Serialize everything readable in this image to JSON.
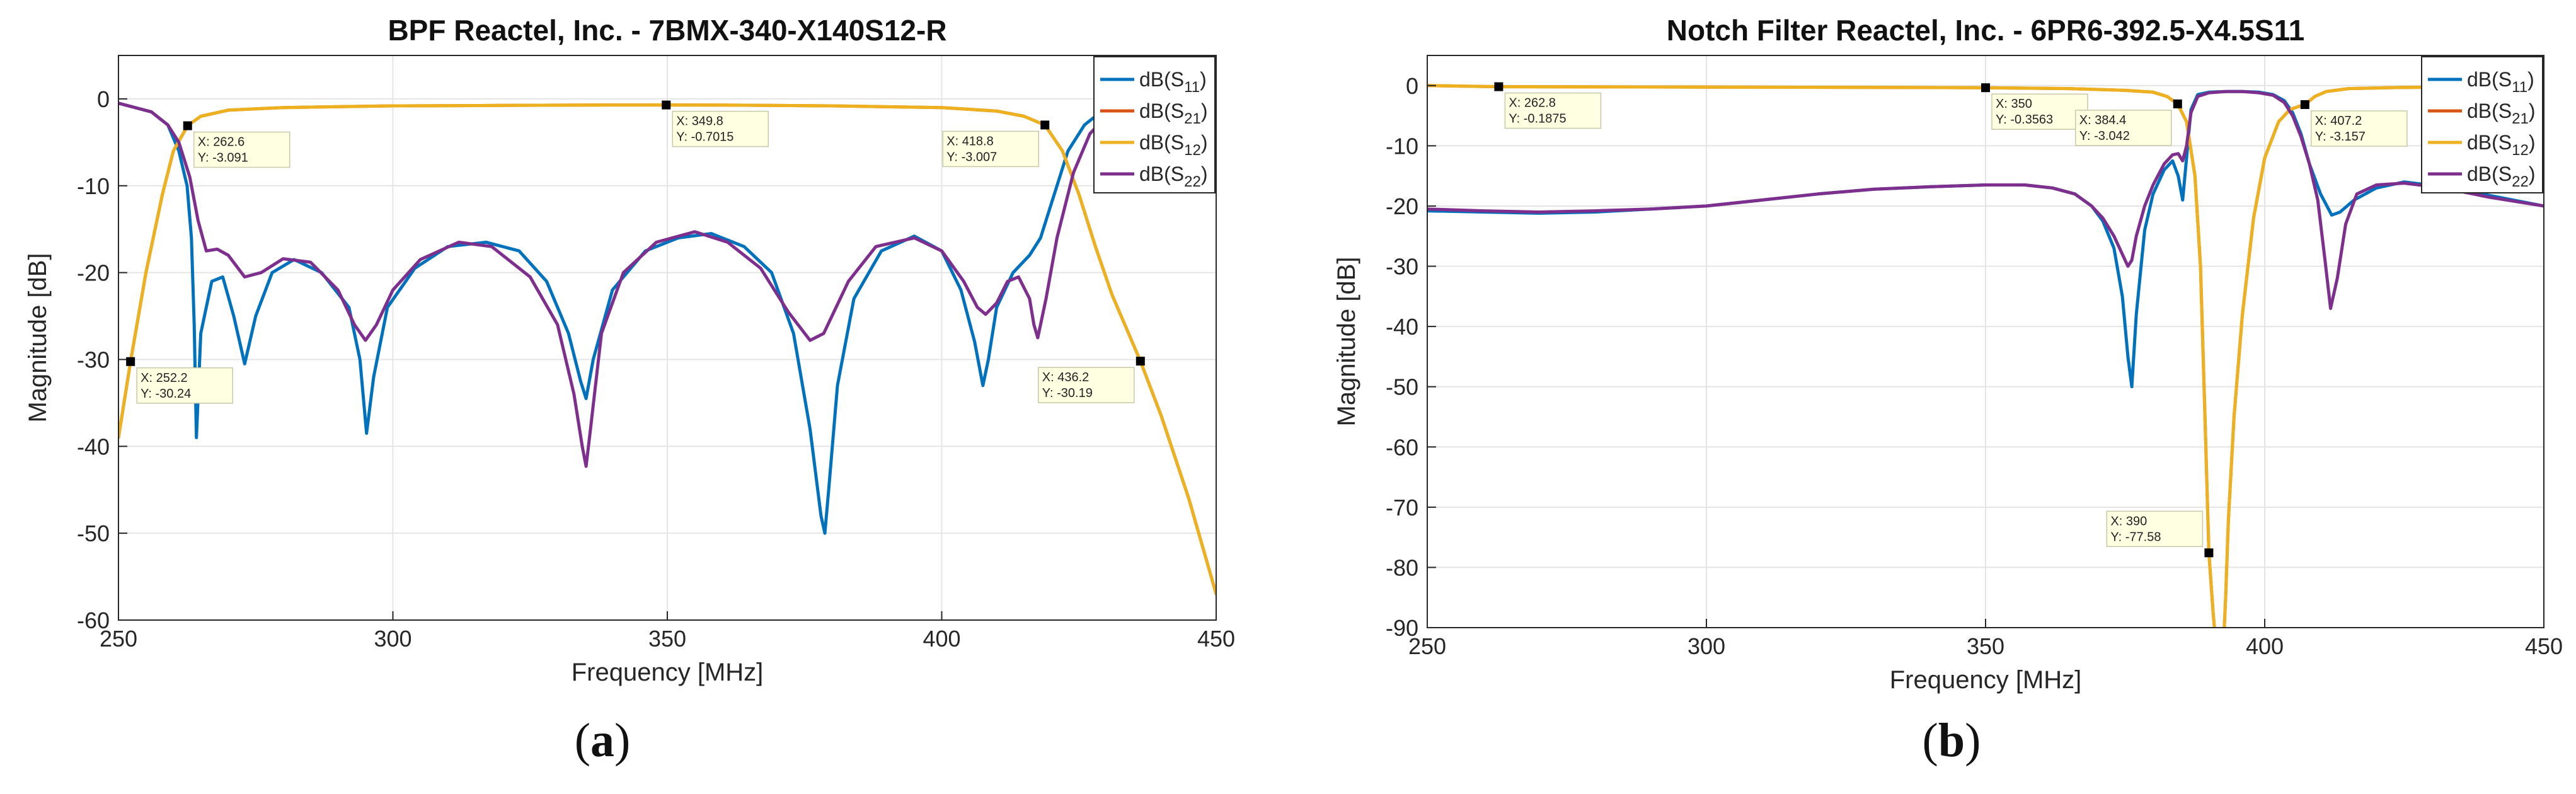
{
  "panels": [
    {
      "label_prefix": "(",
      "label_letter": "a",
      "label_suffix": ")",
      "chart_data": {
        "type": "line",
        "title": "BPF Reactel, Inc. - 7BMX-340-X140S12-R",
        "xlabel": "Frequency [MHz]",
        "ylabel": "Magnitude [dB]",
        "xlim": [
          250,
          450
        ],
        "ylim": [
          -60,
          5
        ],
        "xticks": [
          250,
          300,
          350,
          400,
          450
        ],
        "yticks": [
          0,
          -10,
          -20,
          -30,
          -40,
          -50,
          -60
        ],
        "grid": true,
        "legend": "top-right",
        "series": [
          {
            "name": "dB(S11)",
            "name_base": "dB(S",
            "name_sub": "11",
            "name_end": ")",
            "color": "#0072BD",
            "x": [
              250,
              256,
              259,
              261,
              262.5,
              263.3,
              263.8,
              264.2,
              265,
              267,
              269,
              271,
              273,
              275,
              278,
              282,
              287,
              292,
              294,
              295.2,
              296.5,
              299,
              304,
              310,
              317,
              323,
              328,
              332,
              334.2,
              335.2,
              336.5,
              340,
              346,
              352,
              358,
              364,
              369,
              373,
              376,
              378,
              378.7,
              379.4,
              381,
              384,
              389,
              395,
              400,
              403.5,
              406,
              407.5,
              408.5,
              410,
              413,
              416,
              418,
              420,
              423,
              426,
              429,
              432,
              436,
              440,
              445,
              450
            ],
            "y": [
              -0.5,
              -1.5,
              -3,
              -6,
              -10,
              -16,
              -26,
              -39,
              -27,
              -21,
              -20.5,
              -25,
              -30.5,
              -25,
              -20,
              -18.5,
              -20,
              -24,
              -30,
              -38.5,
              -32,
              -24,
              -19.5,
              -17,
              -16.5,
              -17.5,
              -21,
              -27,
              -32.5,
              -34.5,
              -30,
              -22,
              -17.5,
              -16,
              -15.5,
              -17,
              -20,
              -27,
              -38,
              -48,
              -50,
              -45,
              -33,
              -23,
              -17.5,
              -15.8,
              -17.5,
              -22,
              -28,
              -33,
              -30,
              -24,
              -20,
              -18,
              -16,
              -12,
              -6,
              -3,
              -1.5,
              -0.8,
              -0.6,
              -0.5,
              -0.4,
              -0.3
            ]
          },
          {
            "name": "dB(S21)",
            "name_base": "dB(S",
            "name_sub": "21",
            "name_end": ")",
            "color": "#D95319",
            "x": [
              250,
              252.2,
              255,
              258,
              260,
              262.6,
              265,
              270,
              280,
              300,
              320,
              340,
              349.8,
              360,
              380,
              400,
              410,
              415,
              418.8,
              422,
              425,
              428,
              431,
              436.2,
              440,
              445,
              450
            ],
            "y": [
              -39,
              -30.24,
              -20,
              -11,
              -6,
              -3.091,
              -2,
              -1.3,
              -1,
              -0.8,
              -0.75,
              -0.7,
              -0.7015,
              -0.72,
              -0.8,
              -1,
              -1.4,
              -2,
              -3.007,
              -6,
              -11,
              -17,
              -22.5,
              -30.19,
              -36.5,
              -46,
              -57
            ]
          },
          {
            "name": "dB(S12)",
            "name_base": "dB(S",
            "name_sub": "12",
            "name_end": ")",
            "color": "#EDB120",
            "x": [
              250,
              252.2,
              255,
              258,
              260,
              262.6,
              265,
              270,
              280,
              300,
              320,
              340,
              349.8,
              360,
              380,
              400,
              410,
              415,
              418.8,
              422,
              425,
              428,
              431,
              436.2,
              440,
              445,
              450
            ],
            "y": [
              -39,
              -30.24,
              -20,
              -11,
              -6,
              -3.091,
              -2,
              -1.3,
              -1,
              -0.8,
              -0.75,
              -0.7,
              -0.7015,
              -0.72,
              -0.8,
              -1,
              -1.4,
              -2,
              -3.007,
              -6,
              -11,
              -17,
              -22.5,
              -30.19,
              -36.5,
              -46,
              -57
            ]
          },
          {
            "name": "dB(S22)",
            "name_base": "dB(S",
            "name_sub": "22",
            "name_end": ")",
            "color": "#7E2F8E",
            "x": [
              250,
              256,
              259,
              261,
              263,
              264.5,
              266,
              268,
              270,
              273,
              276,
              280,
              285,
              290,
              293,
              295,
              297,
              300,
              305,
              312,
              318,
              325,
              330,
              333,
              334.5,
              335.2,
              336,
              338,
              342,
              348,
              355,
              361,
              367,
              372,
              376,
              378.5,
              380,
              383,
              388,
              395,
              400,
              404,
              406.5,
              408,
              410,
              412,
              414,
              416,
              416.8,
              417.5,
              419,
              421,
              424,
              427,
              430,
              434,
              438,
              445,
              450
            ],
            "y": [
              -0.5,
              -1.5,
              -3,
              -5,
              -9,
              -14,
              -17.5,
              -17.3,
              -18,
              -20.5,
              -20,
              -18.4,
              -18.8,
              -22,
              -26,
              -27.8,
              -26,
              -22,
              -18.5,
              -16.5,
              -17,
              -20.5,
              -26,
              -34,
              -40,
              -42.3,
              -38,
              -27,
              -20,
              -16.5,
              -15.3,
              -16.5,
              -19.5,
              -24.5,
              -27.8,
              -27,
              -25,
              -21,
              -17,
              -16,
              -17.5,
              -21,
              -24,
              -24.8,
              -23.5,
              -21,
              -20.5,
              -23,
              -26,
              -27.5,
              -23,
              -16,
              -8.5,
              -4,
              -2,
              -1,
              -0.7,
              -0.5,
              -0.4
            ]
          }
        ],
        "markers": [
          {
            "x": 252.2,
            "y": -30.24,
            "label_x": "X: 252.2",
            "label_y": "Y: -30.24",
            "pos": "below-right"
          },
          {
            "x": 262.6,
            "y": -3.091,
            "label_x": "X: 262.6",
            "label_y": "Y: -3.091",
            "pos": "below-right"
          },
          {
            "x": 349.8,
            "y": -0.7015,
            "label_x": "X: 349.8",
            "label_y": "Y: -0.7015",
            "pos": "below-right"
          },
          {
            "x": 418.8,
            "y": -3.007,
            "label_x": "X: 418.8",
            "label_y": "Y: -3.007",
            "pos": "below-left"
          },
          {
            "x": 436.2,
            "y": -30.19,
            "label_x": "X: 436.2",
            "label_y": "Y: -30.19",
            "pos": "below-left"
          }
        ]
      }
    },
    {
      "label_prefix": "(",
      "label_letter": "b",
      "label_suffix": ")",
      "chart_data": {
        "type": "line",
        "title": "Notch Filter Reactel, Inc. - 6PR6-392.5-X4.5S11",
        "xlabel": "Frequency [MHz]",
        "ylabel": "Magnitude [dB]",
        "xlim": [
          250,
          450
        ],
        "ylim": [
          -90,
          5
        ],
        "xticks": [
          250,
          300,
          350,
          400,
          450
        ],
        "yticks": [
          0,
          -10,
          -20,
          -30,
          -40,
          -50,
          -60,
          -70,
          -80,
          -90
        ],
        "grid": true,
        "legend": "top-right",
        "series": [
          {
            "name": "dB(S11)",
            "name_base": "dB(S",
            "name_sub": "11",
            "name_end": ")",
            "color": "#0072BD",
            "x": [
              250,
              260,
              270,
              280,
              290,
              300,
              310,
              320,
              330,
              340,
              350,
              357,
              362,
              366,
              369,
              371,
              373,
              374.5,
              375.5,
              376.2,
              377,
              378.5,
              380,
              382,
              383.5,
              384.5,
              385.3,
              386,
              386.8,
              388,
              390,
              393,
              396,
              399,
              401.5,
              403.5,
              405,
              406.5,
              408,
              410,
              412,
              413.5,
              416,
              420,
              425,
              432,
              440,
              450
            ],
            "y": [
              -20.8,
              -21,
              -21.2,
              -21,
              -20.5,
              -20,
              -19,
              -18,
              -17.2,
              -16.8,
              -16.5,
              -16.5,
              -17,
              -18,
              -20,
              -22.5,
              -27,
              -35,
              -45,
              -50,
              -38,
              -24,
              -18,
              -14,
              -12.5,
              -15,
              -19,
              -12,
              -4,
              -1.5,
              -1.1,
              -1,
              -1,
              -1.1,
              -1.5,
              -2.5,
              -4.5,
              -8,
              -13,
              -18,
              -21.5,
              -21,
              -19,
              -17,
              -16,
              -16.8,
              -18.2,
              -20
            ]
          },
          {
            "name": "dB(S21)",
            "name_base": "dB(S",
            "name_sub": "21",
            "name_end": ")",
            "color": "#D95319",
            "x": [
              250,
              262.8,
              300,
              330,
              350,
              365,
              375,
              380,
              382.5,
              384.4,
              386,
              387.5,
              388.5,
              389.3,
              390,
              390.8,
              391.5,
              392,
              392.5,
              393,
              393.5,
              394.5,
              396,
              398,
              400,
              402.5,
              404.5,
              406,
              407.2,
              409,
              411,
              415,
              425,
              440,
              450
            ],
            "y": [
              0,
              -0.1875,
              -0.25,
              -0.3,
              -0.3563,
              -0.5,
              -0.8,
              -1.1,
              -1.8,
              -3.042,
              -6,
              -15,
              -30,
              -55,
              -77.58,
              -88,
              -95,
              -98,
              -95,
              -85,
              -72,
              -55,
              -38,
              -22,
              -12,
              -6,
              -4,
              -3.5,
              -3.157,
              -1.8,
              -1,
              -0.5,
              -0.3,
              -0.2,
              -0.2
            ]
          },
          {
            "name": "dB(S12)",
            "name_base": "dB(S",
            "name_sub": "12",
            "name_end": ")",
            "color": "#EDB120",
            "x": [
              250,
              262.8,
              300,
              330,
              350,
              365,
              375,
              380,
              382.5,
              384.4,
              386,
              387.5,
              388.5,
              389.3,
              390,
              390.8,
              391.5,
              392,
              392.5,
              393,
              393.5,
              394.5,
              396,
              398,
              400,
              402.5,
              404.5,
              406,
              407.2,
              409,
              411,
              415,
              425,
              440,
              450
            ],
            "y": [
              0,
              -0.1875,
              -0.25,
              -0.3,
              -0.3563,
              -0.5,
              -0.8,
              -1.1,
              -1.8,
              -3.042,
              -6,
              -15,
              -30,
              -55,
              -77.58,
              -88,
              -95,
              -98,
              -95,
              -85,
              -72,
              -55,
              -38,
              -22,
              -12,
              -6,
              -4,
              -3.5,
              -3.157,
              -1.8,
              -1,
              -0.5,
              -0.3,
              -0.2,
              -0.2
            ]
          },
          {
            "name": "dB(S22)",
            "name_base": "dB(S",
            "name_sub": "22",
            "name_end": ")",
            "color": "#7E2F8E",
            "x": [
              250,
              260,
              270,
              280,
              290,
              300,
              310,
              320,
              330,
              340,
              350,
              357,
              362,
              366,
              369,
              371,
              373,
              374.5,
              375.5,
              376.2,
              377,
              378.5,
              380,
              382,
              383.5,
              384.5,
              385.3,
              386,
              386.8,
              388,
              390,
              393,
              396,
              399,
              401.5,
              403.5,
              405,
              406.5,
              408,
              409.5,
              410.8,
              411.8,
              413,
              414.5,
              416.5,
              420,
              425,
              432,
              440,
              450
            ],
            "y": [
              -20.5,
              -20.8,
              -21,
              -20.8,
              -20.5,
              -20,
              -19,
              -18,
              -17.2,
              -16.8,
              -16.5,
              -16.5,
              -17,
              -18,
              -20,
              -22,
              -25,
              -28,
              -30,
              -29,
              -25,
              -20,
              -16.5,
              -13,
              -11.5,
              -11.3,
              -12.5,
              -10,
              -4.5,
              -1.8,
              -1.2,
              -1,
              -1,
              -1.2,
              -1.6,
              -2.8,
              -5,
              -8.5,
              -13,
              -19,
              -29,
              -37,
              -32,
              -23,
              -18,
              -16.5,
              -16.2,
              -17,
              -18.5,
              -20
            ]
          }
        ],
        "markers": [
          {
            "x": 262.8,
            "y": -0.1875,
            "label_x": "X: 262.8",
            "label_y": "Y: -0.1875",
            "pos": "below-right"
          },
          {
            "x": 350,
            "y": -0.3563,
            "label_x": "X: 350",
            "label_y": "Y: -0.3563",
            "pos": "below-right"
          },
          {
            "x": 384.4,
            "y": -3.042,
            "label_x": "X: 384.4",
            "label_y": "Y: -3.042",
            "pos": "below-left"
          },
          {
            "x": 407.2,
            "y": -3.157,
            "label_x": "X: 407.2",
            "label_y": "Y: -3.157",
            "pos": "below-right"
          },
          {
            "x": 390,
            "y": -77.58,
            "label_x": "X: 390",
            "label_y": "Y: -77.58",
            "pos": "above-left"
          }
        ]
      }
    }
  ]
}
